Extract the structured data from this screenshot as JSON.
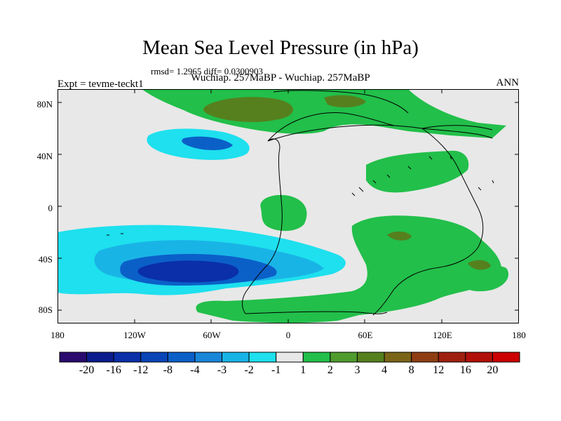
{
  "header": {
    "title": "Mean Sea Level Pressure (in hPa)",
    "stats": "rmsd= 1.2965 diff= 0.0300903",
    "subtitle": "Wuchiap. 257MaBP - Wuchiap. 257MaBP",
    "left_label": "Expt = tevme-teckt1",
    "right_label": "ANN"
  },
  "axes": {
    "lat_ticks": [
      "80N",
      "40N",
      "0",
      "40S",
      "80S"
    ],
    "lon_ticks": [
      "180",
      "120W",
      "60W",
      "0",
      "60E",
      "120E",
      "180"
    ]
  },
  "colorbar": {
    "labels": [
      "-20",
      "-16",
      "-12",
      "-8",
      "-4",
      "-3",
      "-2",
      "-1",
      "1",
      "2",
      "3",
      "4",
      "8",
      "12",
      "16",
      "20"
    ],
    "colors": [
      "#2a0a6e",
      "#0b1c8c",
      "#0a2fa8",
      "#0a45b8",
      "#0b60c8",
      "#1a86d8",
      "#19b4e6",
      "#1ee0ee",
      "#e8e8e8",
      "#22bf4a",
      "#4f9b2e",
      "#56801e",
      "#7a6418",
      "#8e3e12",
      "#a02010",
      "#b01008",
      "#cc0000"
    ]
  },
  "colors": {
    "land_bg": "#e8e8e8",
    "positive_1": "#22bf4a",
    "positive_3": "#56801e",
    "negative_1": "#1ee0ee",
    "negative_2": "#19b4e6",
    "negative_4": "#0b60c8",
    "negative_8": "#0a2fa8"
  }
}
